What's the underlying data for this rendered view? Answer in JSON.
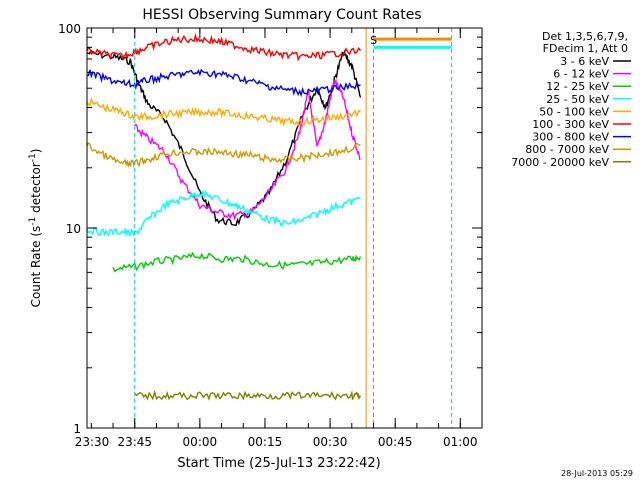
{
  "chart_data": {
    "type": "line",
    "title": "HESSI Observing Summary Count Rates",
    "xlabel": "Start Time (25-Jul-13 23:22:42)",
    "ylabel_main": "Count Rate (s",
    "ylabel_sup1": "-1",
    "ylabel_mid": " detector",
    "ylabel_sup2": "-1",
    "ylabel_end": ")",
    "y_scale": "log",
    "ylim": [
      1,
      100
    ],
    "xlim_minutes": [
      -26,
      65
    ],
    "y_ticks": [
      {
        "value": 1,
        "label": "1"
      },
      {
        "value": 10,
        "label": "10"
      },
      {
        "value": 100,
        "label": "100"
      }
    ],
    "x_ticks": [
      {
        "minute": -30,
        "label": "23:30"
      },
      {
        "minute": -15,
        "label": "23:45"
      },
      {
        "minute": 0,
        "label": "00:00"
      },
      {
        "minute": 15,
        "label": "00:15"
      },
      {
        "minute": 30,
        "label": "00:30"
      },
      {
        "minute": 45,
        "label": "00:45"
      },
      {
        "minute": 60,
        "label": "01:00"
      }
    ],
    "legend_header": [
      "Det 1,3,5,6,7,9,",
      "FDecim 1, Att 0"
    ],
    "series": [
      {
        "name": "3 - 6 keV",
        "color": "#000000",
        "points": [
          [
            -26,
            75
          ],
          [
            -20,
            72
          ],
          [
            -16,
            68
          ],
          [
            -14,
            52
          ],
          [
            -12,
            42
          ],
          [
            -8,
            35
          ],
          [
            -4,
            24
          ],
          [
            0,
            15
          ],
          [
            4,
            11
          ],
          [
            8,
            10.5
          ],
          [
            12,
            12
          ],
          [
            16,
            15
          ],
          [
            20,
            22
          ],
          [
            24,
            38
          ],
          [
            27,
            50
          ],
          [
            29,
            40
          ],
          [
            31,
            55
          ],
          [
            33,
            75
          ],
          [
            35,
            65
          ],
          [
            37,
            45
          ]
        ]
      },
      {
        "name": "6 - 12 keV",
        "color": "#ff00ff",
        "points": [
          [
            -15,
            32
          ],
          [
            -12,
            28
          ],
          [
            -8,
            24
          ],
          [
            -4,
            17
          ],
          [
            0,
            13
          ],
          [
            4,
            12
          ],
          [
            8,
            11.5
          ],
          [
            12,
            12
          ],
          [
            16,
            15
          ],
          [
            20,
            20
          ],
          [
            23,
            30
          ],
          [
            25,
            48
          ],
          [
            27,
            25
          ],
          [
            29,
            35
          ],
          [
            31,
            55
          ],
          [
            33,
            45
          ],
          [
            35,
            30
          ],
          [
            37,
            22
          ]
        ]
      },
      {
        "name": "12 - 25 keV",
        "color": "#00cc00",
        "points": [
          [
            -20,
            6.2
          ],
          [
            -15,
            6.4
          ],
          [
            -10,
            6.8
          ],
          [
            -5,
            7.0
          ],
          [
            0,
            7.3
          ],
          [
            5,
            7.0
          ],
          [
            10,
            7.0
          ],
          [
            15,
            6.6
          ],
          [
            20,
            6.5
          ],
          [
            25,
            6.6
          ],
          [
            30,
            6.8
          ],
          [
            35,
            7.0
          ],
          [
            37,
            7.2
          ]
        ]
      },
      {
        "name": "25 - 50 keV",
        "color": "#00ffff",
        "points": [
          [
            -26,
            9.8
          ],
          [
            -22,
            9.5
          ],
          [
            -18,
            9.6
          ],
          [
            -15,
            9.3
          ],
          [
            -12,
            11
          ],
          [
            -8,
            13
          ],
          [
            -4,
            14
          ],
          [
            0,
            15
          ],
          [
            4,
            14
          ],
          [
            8,
            13
          ],
          [
            12,
            12
          ],
          [
            16,
            11
          ],
          [
            20,
            10.5
          ],
          [
            24,
            11
          ],
          [
            28,
            12
          ],
          [
            32,
            13
          ],
          [
            37,
            14
          ]
        ]
      },
      {
        "name": "50 - 100 keV",
        "color": "#ffaa00",
        "points": [
          [
            -26,
            43
          ],
          [
            -22,
            40
          ],
          [
            -18,
            38
          ],
          [
            -15,
            36
          ],
          [
            -12,
            36
          ],
          [
            -8,
            37
          ],
          [
            -4,
            37.5
          ],
          [
            0,
            38
          ],
          [
            4,
            38
          ],
          [
            8,
            37
          ],
          [
            12,
            36
          ],
          [
            16,
            35
          ],
          [
            20,
            34
          ],
          [
            24,
            34
          ],
          [
            28,
            35
          ],
          [
            32,
            36
          ],
          [
            37,
            38
          ]
        ]
      },
      {
        "name": "100 - 300 keV",
        "color": "#ff0000",
        "points": [
          [
            -26,
            77
          ],
          [
            -22,
            74
          ],
          [
            -18,
            72
          ],
          [
            -15,
            76
          ],
          [
            -12,
            80
          ],
          [
            -8,
            85
          ],
          [
            -4,
            88
          ],
          [
            0,
            88
          ],
          [
            4,
            86
          ],
          [
            8,
            82
          ],
          [
            12,
            78
          ],
          [
            16,
            75
          ],
          [
            20,
            73
          ],
          [
            24,
            72
          ],
          [
            28,
            73
          ],
          [
            32,
            75
          ],
          [
            37,
            77
          ]
        ]
      },
      {
        "name": "300 - 800 keV",
        "color": "#0000ff",
        "points": [
          [
            -26,
            60
          ],
          [
            -22,
            56
          ],
          [
            -18,
            53
          ],
          [
            -15,
            52
          ],
          [
            -12,
            55
          ],
          [
            -8,
            57
          ],
          [
            -4,
            59
          ],
          [
            0,
            60
          ],
          [
            4,
            59
          ],
          [
            8,
            57
          ],
          [
            12,
            54
          ],
          [
            16,
            51
          ],
          [
            20,
            49
          ],
          [
            24,
            48
          ],
          [
            28,
            49
          ],
          [
            32,
            50
          ],
          [
            37,
            52
          ]
        ]
      },
      {
        "name": "800 - 7000 keV",
        "color": "#cc9900",
        "points": [
          [
            -26,
            26
          ],
          [
            -22,
            23
          ],
          [
            -18,
            21
          ],
          [
            -15,
            21
          ],
          [
            -12,
            22
          ],
          [
            -8,
            23.5
          ],
          [
            -4,
            24
          ],
          [
            0,
            24
          ],
          [
            4,
            24
          ],
          [
            8,
            23.5
          ],
          [
            12,
            23
          ],
          [
            16,
            22
          ],
          [
            20,
            22
          ],
          [
            24,
            22.5
          ],
          [
            28,
            23.5
          ],
          [
            32,
            24
          ],
          [
            37,
            26
          ]
        ]
      },
      {
        "name": "7000 - 20000 keV",
        "color": "#808000",
        "points": [
          [
            -15,
            1.45
          ],
          [
            -10,
            1.45
          ],
          [
            -5,
            1.45
          ],
          [
            0,
            1.45
          ],
          [
            5,
            1.45
          ],
          [
            10,
            1.45
          ],
          [
            15,
            1.45
          ],
          [
            20,
            1.45
          ],
          [
            25,
            1.45
          ],
          [
            30,
            1.45
          ],
          [
            35,
            1.45
          ],
          [
            37,
            1.45
          ]
        ]
      }
    ],
    "flags": [
      {
        "label": "S",
        "color": "#ff8800"
      }
    ]
  },
  "footer_timestamp": "28-Jul-2013 05:29"
}
